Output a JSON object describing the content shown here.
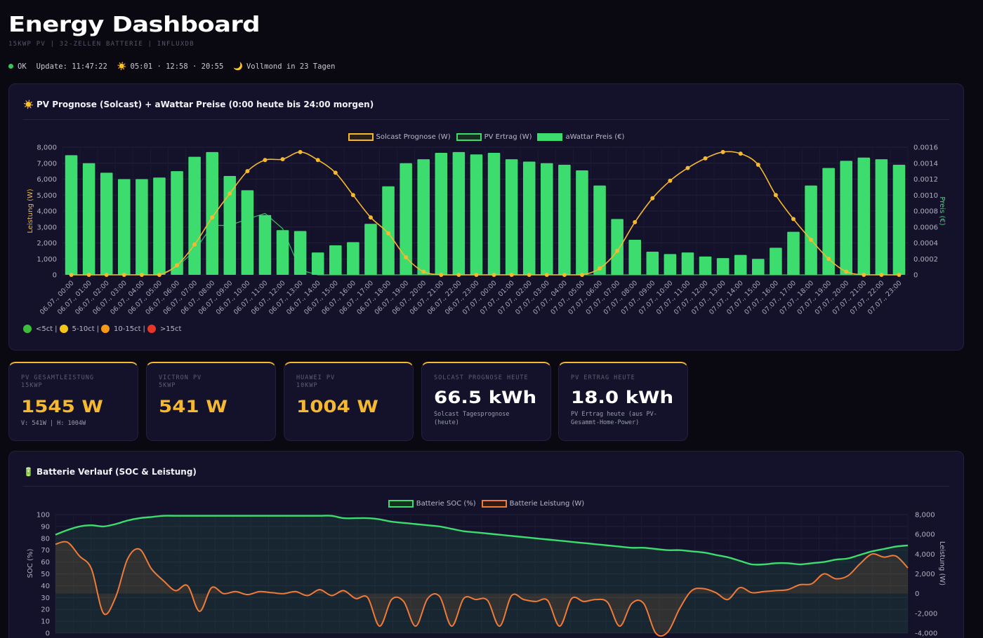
{
  "header": {
    "title": "Energy Dashboard",
    "subtitle": "15KWP PV | 32-ZELLEN BATTERIE | INFLUXDB"
  },
  "status": {
    "state": "OK",
    "update": "Update: 11:47:22",
    "sun_times": "05:01 · 12:58 · 20:55",
    "moon": "Vollmond in 23 Tagen",
    "colors": {
      "ok": "#34c759"
    }
  },
  "pv_panel": {
    "title": "PV Prognose (Solcast) + aWattar Preise (0:00 heute bis 24:00 morgen)",
    "icon": "sun-icon",
    "price_key": [
      "<5ct",
      "5-10ct",
      "10-15ct",
      ">15ct"
    ]
  },
  "battery_panel": {
    "title": "Batterie Verlauf (SOC & Leistung)",
    "icon": "battery-icon"
  },
  "cards": [
    {
      "label": "PV GESAMTLEISTUNG",
      "label2": "15KWP",
      "value": "1545 W",
      "sub": "V: 541W | H: 1004W",
      "color": "#f5b82e"
    },
    {
      "label": "VICTRON PV",
      "label2": "5KWP",
      "value": "541 W",
      "sub": "",
      "color": "#f5b82e"
    },
    {
      "label": "HUAWEI PV",
      "label2": "10KWP",
      "value": "1004 W",
      "sub": "",
      "color": "#f5b82e"
    },
    {
      "label": "SOLCAST PROGNOSE HEUTE",
      "label2": "",
      "value": "66.5 kWh",
      "sub": "Solcast Tagesprognose (heute)",
      "color": "#ffffff"
    },
    {
      "label": "PV ERTRAG HEUTE",
      "label2": "",
      "value": "18.0 kWh",
      "sub": "PV Ertrag heute (aus PV-Gesammt-Home-Power)",
      "color": "#ffffff"
    }
  ],
  "chart_data": [
    {
      "type": "bar",
      "legend": [
        "Solcast Prognose (W)",
        "PV Ertrag (W)",
        "aWattar Preis (€)"
      ],
      "legend_placement": "top",
      "ylabel": "Leistung (W)",
      "y2label": "Preis (€)",
      "ylim": [
        0,
        8000
      ],
      "y2lim": [
        0,
        0.0016
      ],
      "yticks": [
        "0",
        "1,000",
        "2,000",
        "3,000",
        "4,000",
        "5,000",
        "6,000",
        "7,000",
        "8,000"
      ],
      "y2ticks": [
        "0",
        "0.0002",
        "0.0004",
        "0.0006",
        "0.0008",
        "0.0010",
        "0.0012",
        "0.0014",
        "0.0016"
      ],
      "categories": [
        "06.07., 00:00",
        "06.07., 01:00",
        "06.07., 02:00",
        "06.07., 03:00",
        "06.07., 04:00",
        "06.07., 05:00",
        "06.07., 06:00",
        "06.07., 07:00",
        "06.07., 08:00",
        "06.07., 09:00",
        "06.07., 10:00",
        "06.07., 11:00",
        "06.07., 12:00",
        "06.07., 13:00",
        "06.07., 14:00",
        "06.07., 15:00",
        "06.07., 16:00",
        "06.07., 17:00",
        "06.07., 18:00",
        "06.07., 19:00",
        "06.07., 20:00",
        "06.07., 21:00",
        "06.07., 22:00",
        "06.07., 23:00",
        "07.07., 00:00",
        "07.07., 01:00",
        "07.07., 02:00",
        "07.07., 03:00",
        "07.07., 04:00",
        "07.07., 05:00",
        "07.07., 06:00",
        "07.07., 07:00",
        "07.07., 08:00",
        "07.07., 09:00",
        "07.07., 10:00",
        "07.07., 11:00",
        "07.07., 12:00",
        "07.07., 13:00",
        "07.07., 14:00",
        "07.07., 15:00",
        "07.07., 16:00",
        "07.07., 17:00",
        "07.07., 18:00",
        "07.07., 19:00",
        "07.07., 20:00",
        "07.07., 21:00",
        "07.07., 22:00",
        "07.07., 23:00"
      ],
      "series": [
        {
          "name": "aWattar Preis (€)",
          "axis": "right",
          "color": "#3ddc6f",
          "values": [
            0.0015,
            0.0014,
            0.00128,
            0.0012,
            0.0012,
            0.00122,
            0.0013,
            0.00148,
            0.00154,
            0.00124,
            0.00106,
            0.00075,
            0.00056,
            0.00055,
            0.00028,
            0.00037,
            0.00041,
            0.00064,
            0.00111,
            0.0014,
            0.00145,
            0.00153,
            0.00154,
            0.00151,
            0.00153,
            0.00145,
            0.00142,
            0.0014,
            0.00138,
            0.00131,
            0.00112,
            0.0007,
            0.00044,
            0.00029,
            0.00026,
            0.00028,
            0.00023,
            0.00021,
            0.00025,
            0.0002,
            0.00034,
            0.00054,
            0.00112,
            0.00134,
            0.00143,
            0.00147,
            0.00145,
            0.00138
          ]
        },
        {
          "name": "Solcast Prognose (W)",
          "axis": "left",
          "color": "#f5b82e",
          "values": [
            0,
            0,
            0,
            0,
            0,
            0,
            600,
            1900,
            3600,
            5100,
            6500,
            7200,
            7250,
            7700,
            7200,
            6400,
            5000,
            3600,
            2600,
            1100,
            200,
            0,
            0,
            0,
            0,
            0,
            0,
            0,
            0,
            0,
            400,
            1500,
            3300,
            4800,
            5900,
            6700,
            7300,
            7700,
            7600,
            6900,
            5000,
            3500,
            2200,
            1000,
            200,
            0,
            0,
            0
          ]
        },
        {
          "name": "PV Ertrag (W)",
          "axis": "left",
          "color": "#3ddc6f",
          "values": [
            0,
            0,
            0,
            0,
            0,
            0,
            500,
            1500,
            3100,
            3100,
            3500,
            3850,
            2900,
            300,
            0,
            0,
            0,
            0,
            0,
            0,
            0,
            0,
            0,
            0,
            0,
            0,
            0,
            0,
            0,
            0,
            0,
            0,
            0,
            0,
            0,
            0,
            0,
            0,
            0,
            0,
            0,
            0,
            0,
            0,
            0,
            0,
            0,
            0
          ]
        }
      ]
    },
    {
      "type": "line",
      "legend": [
        "Batterie SOC (%)",
        "Batterie Leistung (W)"
      ],
      "legend_placement": "top",
      "ylabel": "SOC (%)",
      "y2label": "Leistung (W)",
      "ylim": [
        0,
        100
      ],
      "y2lim": [
        -4000,
        8000
      ],
      "yticks": [
        "0",
        "10",
        "20",
        "30",
        "40",
        "50",
        "60",
        "70",
        "80",
        "90",
        "100"
      ],
      "y2ticks": [
        "-4,000",
        "-2,000",
        "0",
        "2,000",
        "4,000",
        "6,000",
        "8,000"
      ],
      "series": [
        {
          "name": "Batterie SOC (%)",
          "axis": "left",
          "color": "#3ddc6f",
          "values": [
            83,
            87,
            90,
            91,
            90,
            92,
            95,
            97,
            98,
            99,
            99,
            99,
            99,
            99,
            99,
            99,
            99,
            99,
            99,
            99,
            99,
            99,
            99,
            99,
            97,
            97,
            97,
            96,
            94,
            93,
            92,
            91,
            90,
            88,
            86,
            85,
            84,
            83,
            82,
            81,
            80,
            79,
            78,
            77,
            76,
            75,
            74,
            73,
            72,
            72,
            71,
            70,
            70,
            69,
            68,
            66,
            64,
            61,
            58,
            58,
            59,
            59,
            58,
            59,
            60,
            62,
            63,
            66,
            69,
            71,
            73,
            74
          ]
        },
        {
          "name": "Batterie Leistung (W)",
          "axis": "right",
          "color": "#f07a38",
          "values": [
            5000,
            5200,
            3800,
            2500,
            -2000,
            -400,
            3500,
            4500,
            2500,
            1300,
            300,
            800,
            -1800,
            600,
            0,
            200,
            -100,
            200,
            100,
            0,
            200,
            -200,
            400,
            -200,
            300,
            -500,
            -400,
            -3300,
            -600,
            -800,
            -3300,
            -500,
            -300,
            -3300,
            -500,
            -600,
            -700,
            -3300,
            -200,
            -600,
            -800,
            -700,
            -3300,
            -500,
            -800,
            -600,
            -900,
            -3300,
            -1000,
            -1000,
            -4000,
            -3900,
            -1500,
            300,
            500,
            100,
            -600,
            600,
            100,
            200,
            300,
            400,
            900,
            1000,
            2000,
            1500,
            1800,
            3000,
            4000,
            3700,
            3800,
            2600
          ]
        }
      ]
    }
  ]
}
